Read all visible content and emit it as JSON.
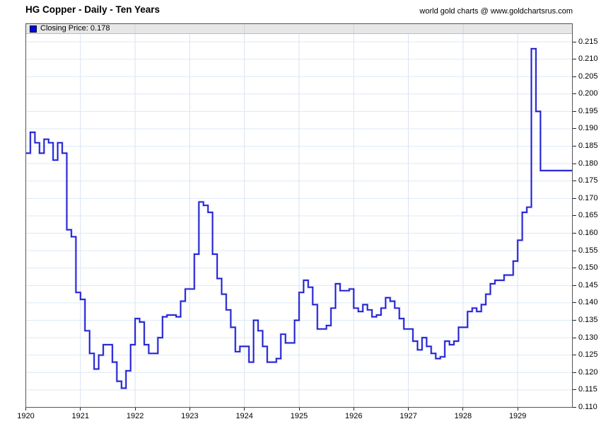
{
  "page": {
    "title": "HG Copper - Daily - Ten Years",
    "watermark": "world gold charts @ www.goldchartsrus.com"
  },
  "legend": {
    "series_label": "Closing Price",
    "value": "0.178",
    "display": "Closing Price: 0.178",
    "swatch_color": "#0008dd"
  },
  "colors": {
    "line": "#1515cd",
    "line_halo": "rgba(110,110,245,0.30)",
    "grid_horizontal": "#dce9f6",
    "grid_vertical": "#d9e2f0",
    "frame": "#555555",
    "legend_bar_bg": "#e7e7e7",
    "legend_bar_border": "#bcbcbc",
    "legend_cell_divider": "#d4d4d4",
    "tick": "#222222",
    "text": "#000000"
  },
  "chart_data": {
    "type": "line",
    "line_style": "step",
    "title": "HG Copper - Daily - Ten Years",
    "subtitle": "",
    "watermark": "world gold charts @ www.goldchartsrus.com",
    "legend_entries": [
      "Closing Price: 0.178"
    ],
    "legend_position": "top-bar",
    "grid": true,
    "x_axis": {
      "tick_labels": [
        "1920",
        "1921",
        "1922",
        "1923",
        "1924",
        "1925",
        "1926",
        "1927",
        "1928",
        "1929"
      ],
      "range_years": [
        1920,
        1930
      ]
    },
    "y_axis": {
      "side": "right",
      "tick_labels": [
        "0.110",
        "0.115",
        "0.120",
        "0.125",
        "0.130",
        "0.135",
        "0.140",
        "0.145",
        "0.150",
        "0.155",
        "0.160",
        "0.165",
        "0.170",
        "0.175",
        "0.180",
        "0.185",
        "0.190",
        "0.195",
        "0.200",
        "0.205",
        "0.210",
        "0.215"
      ],
      "ylim": [
        0.11,
        0.215
      ],
      "step": 0.005
    },
    "series": [
      {
        "name": "Closing Price",
        "cadence": "monthly",
        "start": "1920-01",
        "end": "1929-12",
        "last_value": 0.178,
        "values": [
          0.183,
          0.189,
          0.186,
          0.183,
          0.187,
          0.186,
          0.181,
          0.186,
          0.183,
          0.161,
          0.159,
          0.143,
          0.141,
          0.132,
          0.1255,
          0.121,
          0.125,
          0.128,
          0.128,
          0.123,
          0.1175,
          0.1155,
          0.1205,
          0.128,
          0.1355,
          0.1345,
          0.128,
          0.1255,
          0.1255,
          0.13,
          0.136,
          0.1365,
          0.1365,
          0.136,
          0.1405,
          0.144,
          0.144,
          0.154,
          0.169,
          0.168,
          0.166,
          0.154,
          0.147,
          0.1425,
          0.138,
          0.133,
          0.126,
          0.1275,
          0.1275,
          0.123,
          0.135,
          0.132,
          0.1275,
          0.123,
          0.123,
          0.124,
          0.131,
          0.1285,
          0.1285,
          0.135,
          0.143,
          0.1465,
          0.1445,
          0.1395,
          0.1325,
          0.1325,
          0.1335,
          0.1385,
          0.1455,
          0.1435,
          0.1435,
          0.144,
          0.1385,
          0.1375,
          0.1395,
          0.138,
          0.136,
          0.1365,
          0.1385,
          0.1415,
          0.1405,
          0.1385,
          0.1355,
          0.1325,
          0.1325,
          0.129,
          0.1265,
          0.13,
          0.1275,
          0.1255,
          0.124,
          0.1245,
          0.129,
          0.128,
          0.129,
          0.133,
          0.133,
          0.1375,
          0.1385,
          0.1375,
          0.1395,
          0.1425,
          0.1455,
          0.1465,
          0.1465,
          0.148,
          0.148,
          0.152,
          0.158,
          0.166,
          0.1675,
          0.213,
          0.195,
          0.178,
          0.178,
          0.178,
          0.178,
          0.178,
          0.178,
          0.178
        ]
      }
    ]
  }
}
